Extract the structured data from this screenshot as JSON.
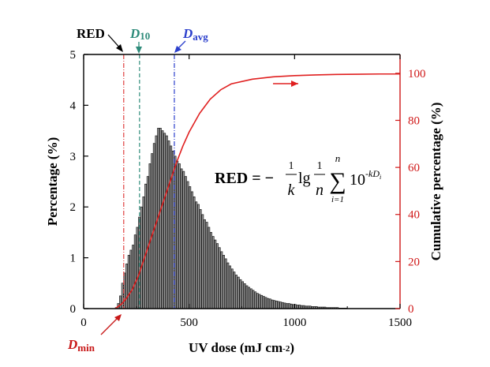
{
  "chart_data": {
    "type": "bar",
    "xlabel_main": "UV dose (mJ cm",
    "xlabel_sup": "-2",
    "xlabel_close": ")",
    "ylabel": "Percentage (%)",
    "y2label": "Cumulative percentage (%)",
    "xlim": [
      0,
      1500
    ],
    "ylim": [
      0,
      5
    ],
    "y2lim": [
      0,
      108
    ],
    "xticks": [
      "0",
      "500",
      "1000",
      "1500"
    ],
    "yticks": [
      "0",
      "1",
      "2",
      "3",
      "4",
      "5"
    ],
    "y2ticks": [
      "0",
      "20",
      "40",
      "60",
      "80",
      "100"
    ],
    "bin_width": 10,
    "bin_start": 150,
    "histogram_values": [
      0.02,
      0.1,
      0.25,
      0.5,
      0.7,
      0.88,
      1.05,
      1.15,
      1.25,
      1.45,
      1.6,
      1.8,
      2.0,
      2.2,
      2.45,
      2.6,
      2.85,
      3.05,
      3.25,
      3.4,
      3.55,
      3.55,
      3.5,
      3.45,
      3.4,
      3.3,
      3.2,
      3.1,
      3.0,
      2.9,
      2.85,
      2.75,
      2.7,
      2.6,
      2.5,
      2.4,
      2.3,
      2.2,
      2.1,
      2.05,
      1.95,
      1.85,
      1.75,
      1.7,
      1.6,
      1.5,
      1.42,
      1.35,
      1.28,
      1.2,
      1.12,
      1.05,
      0.98,
      0.9,
      0.84,
      0.78,
      0.72,
      0.66,
      0.62,
      0.57,
      0.53,
      0.49,
      0.45,
      0.42,
      0.39,
      0.36,
      0.33,
      0.3,
      0.28,
      0.26,
      0.24,
      0.22,
      0.2,
      0.19,
      0.17,
      0.16,
      0.15,
      0.14,
      0.13,
      0.12,
      0.11,
      0.1,
      0.1,
      0.09,
      0.08,
      0.08,
      0.07,
      0.07,
      0.06,
      0.06,
      0.05,
      0.05,
      0.05,
      0.04,
      0.04,
      0.04,
      0.03,
      0.03,
      0.03,
      0.03,
      0.02,
      0.02,
      0.02,
      0.02,
      0.02,
      0.02,
      0.01,
      0.01,
      0.01,
      0.01
    ],
    "cumulative_curve": {
      "x": [
        150,
        180,
        200,
        230,
        260,
        290,
        320,
        350,
        380,
        410,
        440,
        470,
        500,
        550,
        600,
        650,
        700,
        800,
        900,
        1000,
        1100,
        1200,
        1300,
        1400,
        1500
      ],
      "y": [
        0,
        2,
        4,
        8,
        14,
        22,
        30,
        38,
        46,
        54,
        62,
        69,
        75,
        83,
        89,
        93,
        95.5,
        97.5,
        98.5,
        99,
        99.3,
        99.5,
        99.6,
        99.7,
        99.7
      ]
    },
    "markers": [
      {
        "name": "RED",
        "value": 190,
        "color": "#e04040"
      },
      {
        "name": "D10",
        "value": 265,
        "color": "#2e8b7a"
      },
      {
        "name": "Davg",
        "value": 430,
        "color": "#2b3fcc"
      }
    ],
    "labels": {
      "red": "RED",
      "d10_main": "D",
      "d10_sub": "10",
      "davg_main": "D",
      "davg_sub": "avg",
      "dmin_main": "D",
      "dmin_sub": "min"
    },
    "formula": {
      "lhs": "RED = −",
      "frac1_num": "1",
      "frac1_den": "k",
      "lg": "lg",
      "frac2_num": "1",
      "frac2_den": "n",
      "sum_top": "n",
      "sum_bottom": "i=1",
      "sum_sign": "∑",
      "base": "10",
      "exp": "-kD",
      "exp_sub": "i"
    },
    "colors": {
      "bar_fill": "#9a9a9a",
      "bar_stroke": "#1a1a1a",
      "curve": "#e02020",
      "right_axis": "#d01818",
      "d10": "#2e8b7a",
      "davg": "#2b3fcc",
      "dmin_label": "#c81818"
    }
  }
}
